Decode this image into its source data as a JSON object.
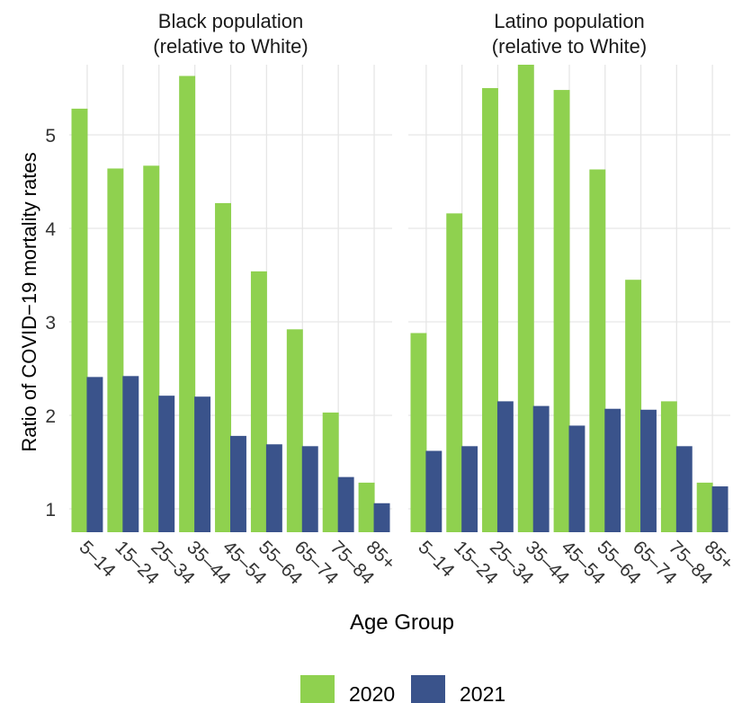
{
  "chart_data": {
    "type": "bar",
    "xlabel": "Age Group",
    "ylabel": "Ratio of COVID−19 mortality rates",
    "ylim": [
      0.75,
      5.75
    ],
    "yticks": [
      1,
      2,
      3,
      4,
      5
    ],
    "grid": true,
    "legend_position": "bottom",
    "categories": [
      "5–14",
      "15–24",
      "25–34",
      "35–44",
      "45–54",
      "55–64",
      "65–74",
      "75–84",
      "85+"
    ],
    "facets": [
      {
        "title_line1": "Black population",
        "title_line2": "(relative to White)",
        "series": [
          {
            "name": "2020",
            "color": "#8fd14f",
            "values": [
              5.28,
              4.64,
              4.67,
              5.63,
              4.27,
              3.54,
              2.92,
              2.03,
              1.28
            ]
          },
          {
            "name": "2021",
            "color": "#3a538b",
            "values": [
              2.41,
              2.42,
              2.21,
              2.2,
              1.78,
              1.69,
              1.67,
              1.34,
              1.06
            ]
          }
        ]
      },
      {
        "title_line1": "Latino population",
        "title_line2": "(relative to White)",
        "series": [
          {
            "name": "2020",
            "color": "#8fd14f",
            "values": [
              2.88,
              4.16,
              5.5,
              5.75,
              5.48,
              4.63,
              3.45,
              2.15,
              1.28
            ]
          },
          {
            "name": "2021",
            "color": "#3a538b",
            "values": [
              1.62,
              1.67,
              2.15,
              2.1,
              1.89,
              2.07,
              2.06,
              1.67,
              1.24
            ]
          }
        ]
      }
    ],
    "legend": [
      {
        "label": "2020",
        "color": "#8fd14f"
      },
      {
        "label": "2021",
        "color": "#3a538b"
      }
    ]
  }
}
